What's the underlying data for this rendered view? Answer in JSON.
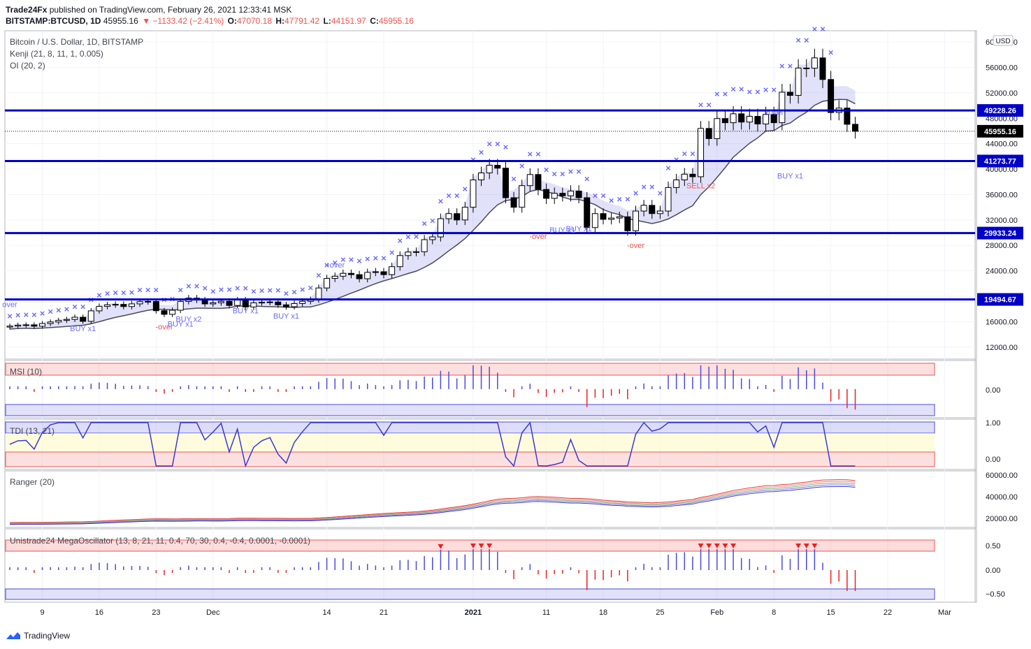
{
  "header": {
    "publisher": "Trade24Fx",
    "published_text": "published on TradingView.com, February 26, 2021 12:33:41 MSK",
    "symbol": "BITSTAMP:BTCUSD, 1D",
    "last": "45955.16",
    "change": "▼ −1133.42 (−2.41%)",
    "open_label": "O:",
    "open": "47070.18",
    "high_label": "H:",
    "high": "47791.42",
    "low_label": "L:",
    "low": "44151.97",
    "close_label": "C:",
    "close": "45955.16"
  },
  "legend": {
    "title": "Bitcoin / U.S. Dollar, 1D, BITSTAMP",
    "kenji": "Kenji (21, 8, 11, 1, 0.005)",
    "oi": "OI (20, 2)",
    "msi": "MSI (10)",
    "tdi": "TDI (13, 21)",
    "ranger": "Ranger (20)",
    "mega": "Unistrade24 MegaOscillator (13, 8, 21, 11, 0.4, 70, 30, 0.4, -0.4, 0.0001, -0.0001)"
  },
  "footer": {
    "brand": "TradingView"
  },
  "colors": {
    "level": "#0000c8",
    "up": "#ffffff",
    "down": "#000000",
    "signal": "#6b6bff",
    "sell": "#ef5350"
  },
  "chart_data": [
    {
      "type": "candlestick",
      "title": "Bitcoin / U.S. Dollar, 1D, BITSTAMP",
      "x_ticks": [
        "9",
        "16",
        "23",
        "Dec",
        "14",
        "21",
        "2021",
        "11",
        "18",
        "25",
        "Feb",
        "8",
        "15",
        "22",
        "Mar"
      ],
      "y_ticks": [
        "12000.00",
        "16000.00",
        "20000.00",
        "24000.00",
        "28000.00",
        "32000.00",
        "36000.00",
        "40000.00",
        "44000.00",
        "48000.00",
        "52000.00",
        "56000.00",
        "60000.00"
      ],
      "ylim": [
        10000,
        61000
      ],
      "currency": "USD",
      "levels": [
        {
          "value": 49228.26,
          "label": "49228.26"
        },
        {
          "value": 41273.77,
          "label": "41273.77"
        },
        {
          "value": 29933.24,
          "label": "29933.24"
        },
        {
          "value": 19494.67,
          "label": "19494.67"
        }
      ],
      "last_price": {
        "value": 45955.16,
        "label": "45955.16"
      },
      "closes": [
        15300,
        15450,
        15500,
        15280,
        15700,
        15950,
        16200,
        16350,
        16700,
        16050,
        17700,
        18400,
        18650,
        18720,
        18380,
        18800,
        19150,
        19180,
        17720,
        17150,
        17800,
        19180,
        19700,
        19400,
        18790,
        18970,
        19200,
        18550,
        19400,
        18300,
        18950,
        19050,
        19100,
        18650,
        18350,
        18850,
        19200,
        19450,
        21300,
        22800,
        23150,
        23600,
        23400,
        22750,
        23750,
        23850,
        23400,
        24650,
        26400,
        26950,
        27000,
        28900,
        29330,
        32200,
        33000,
        32000,
        34000,
        38300,
        39400,
        40600,
        40150,
        35500,
        34000,
        37400,
        39150,
        36800,
        35400,
        36200,
        35800,
        36550,
        35500,
        30800,
        33000,
        32100,
        32300,
        32500,
        30300,
        33400,
        34300,
        33000,
        33400,
        37100,
        38300,
        39200,
        38800,
        46400,
        44800,
        47950,
        47300,
        48700,
        47400,
        48300,
        47100,
        48600,
        47300,
        52100,
        51600,
        55900,
        55880,
        57500,
        54100,
        48900,
        49600,
        47050,
        45955
      ],
      "annotations": [
        "BUY x1",
        "BUY x2",
        "BUY x1",
        "BUY x1",
        "BUY x1",
        "BUY x1",
        "BUY x1",
        "BUY x1",
        "SELL x2",
        "-over",
        "-over",
        "-over",
        "+over",
        "+over",
        "over"
      ]
    },
    {
      "type": "bar",
      "title": "MSI (10)",
      "y_ticks": [
        "0.00"
      ]
    },
    {
      "type": "line",
      "title": "TDI (13, 21)",
      "y_ticks": [
        "1.00",
        "0.00"
      ]
    },
    {
      "type": "line",
      "title": "Ranger (20)",
      "y_ticks": [
        "60000.00",
        "40000.00",
        "20000.00"
      ]
    },
    {
      "type": "bar",
      "title": "Unistrade24 MegaOscillator (13, 8, 21, 11, 0.4, 70, 30, 0.4, -0.4, 0.0001, -0.0001)",
      "y_ticks": [
        "0.50",
        "0.00",
        "−0.50"
      ]
    }
  ]
}
